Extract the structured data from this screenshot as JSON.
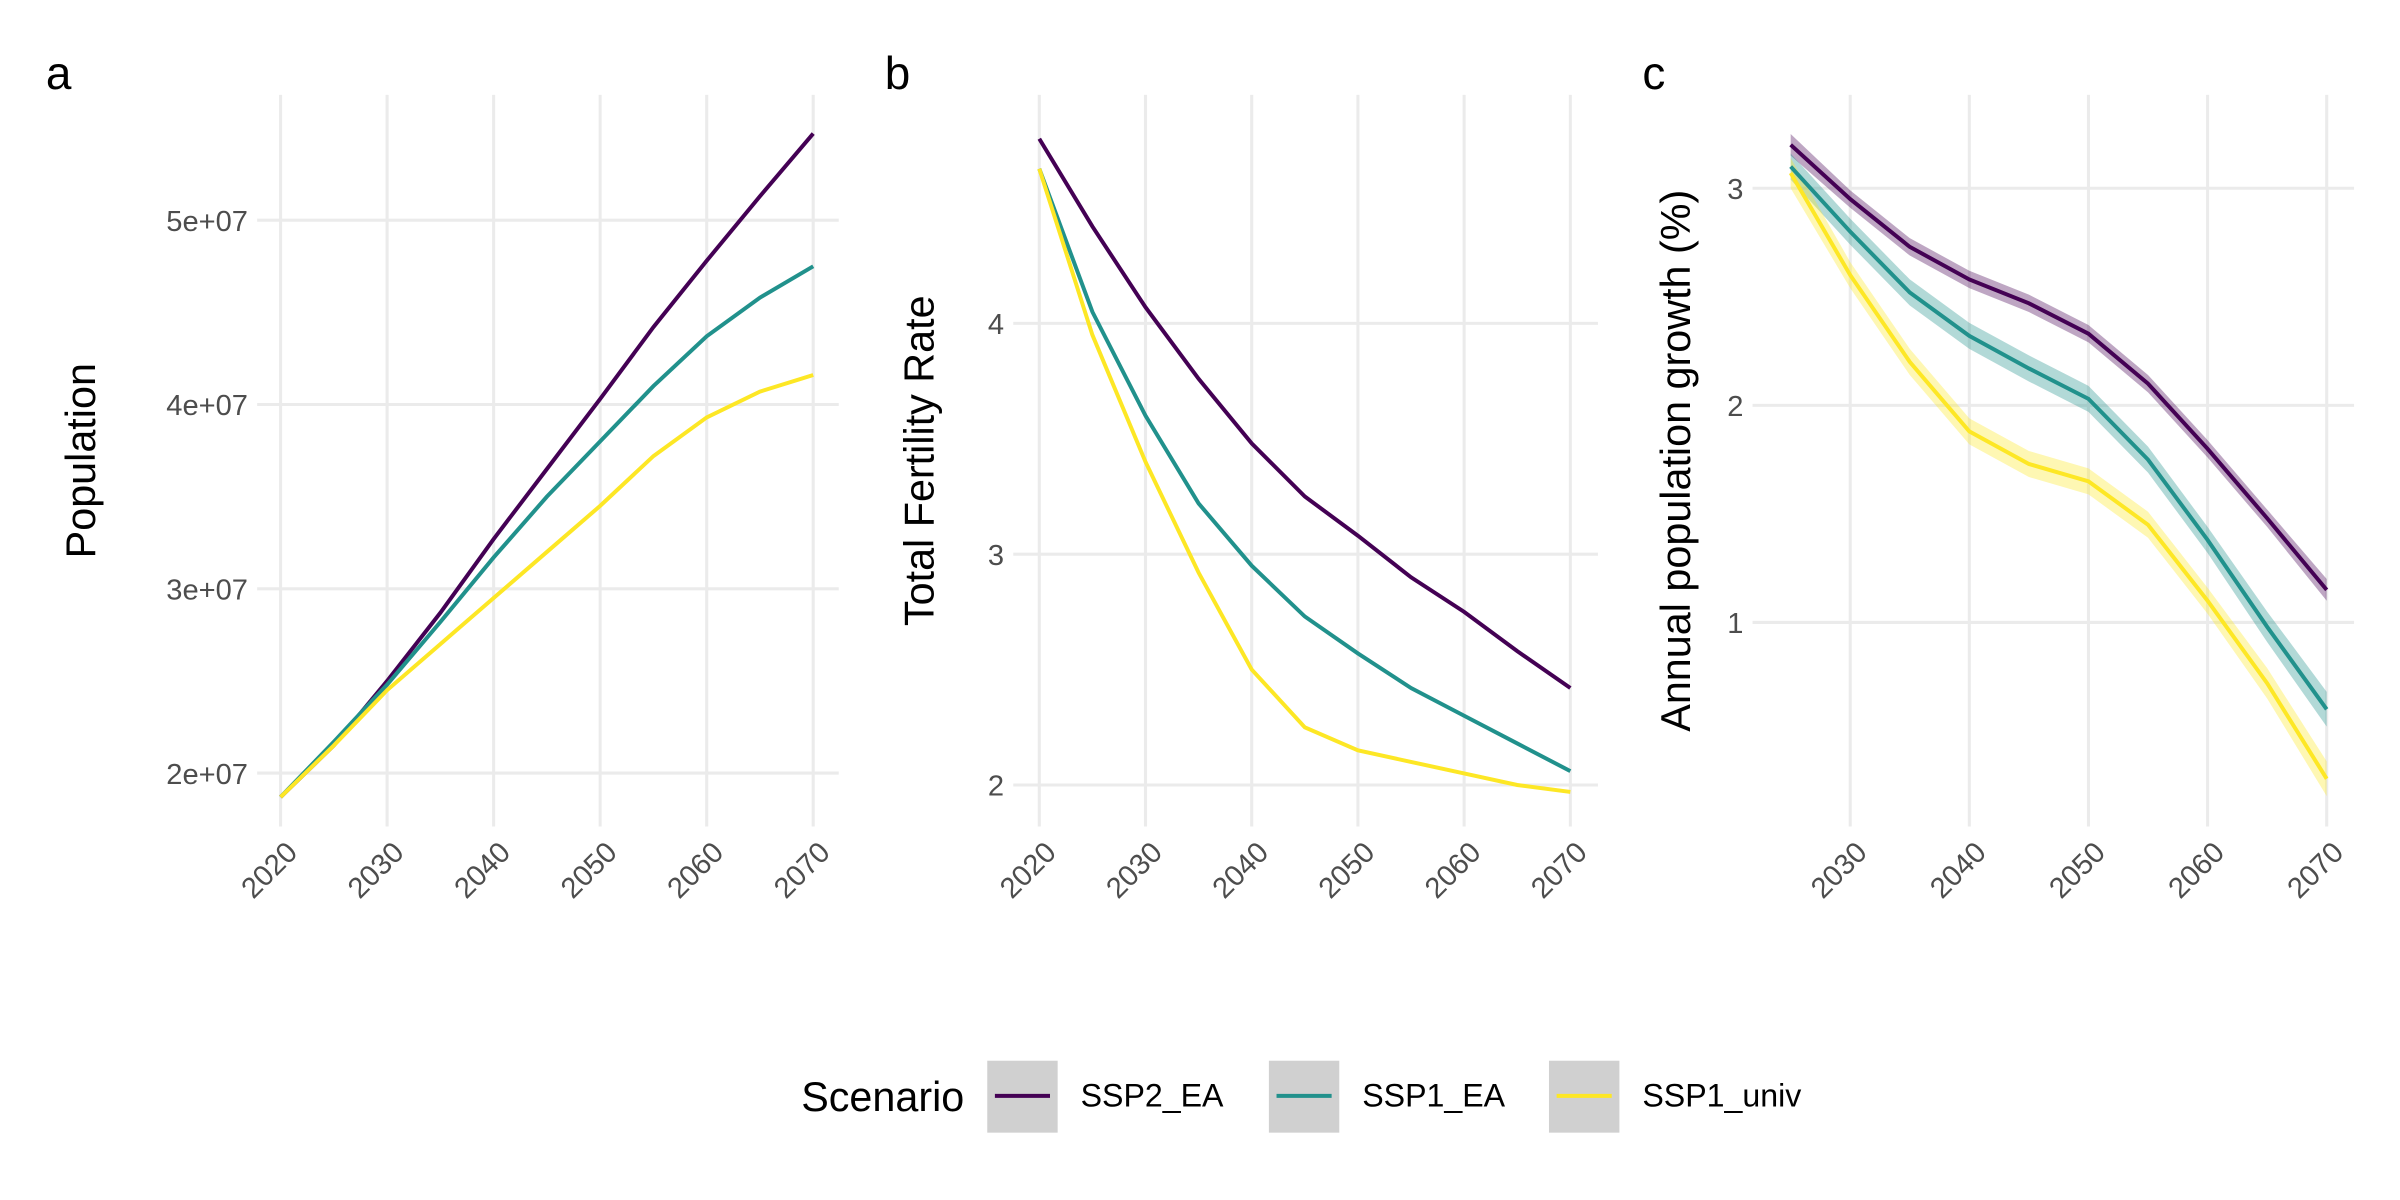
{
  "legend": {
    "title": "Scenario",
    "position": "bottom"
  },
  "chart_data": [
    {
      "type": "line",
      "panel_label": "a",
      "ylabel": "Population",
      "x": [
        2020,
        2025,
        2030,
        2035,
        2040,
        2045,
        2050,
        2055,
        2060,
        2065,
        2070
      ],
      "xlim": [
        2017.8,
        2072.4
      ],
      "xticks": [
        2020,
        2030,
        2040,
        2050,
        2060,
        2070
      ],
      "ylim": [
        17100000,
        56800000
      ],
      "yticks": [
        {
          "value": 20000000,
          "label": "2e+07"
        },
        {
          "value": 30000000,
          "label": "3e+07"
        },
        {
          "value": 40000000,
          "label": "4e+07"
        },
        {
          "value": 50000000,
          "label": "5e+07"
        }
      ],
      "grid": true,
      "series": [
        {
          "name": "SSP2_EA",
          "color": "#440154",
          "values": [
            18700000,
            21500000,
            25000000,
            28700000,
            32700000,
            36500000,
            40300000,
            44200000,
            47800000,
            51300000,
            54700000
          ]
        },
        {
          "name": "SSP1_EA",
          "color": "#21918c",
          "values": [
            18700000,
            21700000,
            24800000,
            28200000,
            31700000,
            35000000,
            38000000,
            41000000,
            43700000,
            45800000,
            47500000
          ]
        },
        {
          "name": "SSP1_univ",
          "color": "#fde725",
          "values": [
            18700000,
            21500000,
            24500000,
            27000000,
            29500000,
            32000000,
            34500000,
            37200000,
            39300000,
            40700000,
            41600000
          ]
        }
      ]
    },
    {
      "type": "line",
      "panel_label": "b",
      "ylabel": "Total Fertility Rate",
      "x": [
        2020,
        2025,
        2030,
        2035,
        2040,
        2045,
        2050,
        2055,
        2060,
        2065,
        2070
      ],
      "xlim": [
        2017.55,
        2072.6
      ],
      "xticks": [
        2020,
        2030,
        2040,
        2050,
        2060,
        2070
      ],
      "ylim": [
        1.82,
        4.99
      ],
      "yticks": [
        2,
        3,
        4
      ],
      "grid": true,
      "series": [
        {
          "name": "SSP2_EA",
          "color": "#440154",
          "values": [
            4.8,
            4.42,
            4.07,
            3.76,
            3.48,
            3.25,
            3.08,
            2.9,
            2.75,
            2.58,
            2.42
          ]
        },
        {
          "name": "SSP1_EA",
          "color": "#21918c",
          "values": [
            4.67,
            4.05,
            3.6,
            3.22,
            2.95,
            2.73,
            2.57,
            2.42,
            2.3,
            2.18,
            2.06
          ]
        },
        {
          "name": "SSP1_univ",
          "color": "#fde725",
          "values": [
            4.67,
            3.95,
            3.4,
            2.92,
            2.5,
            2.25,
            2.15,
            2.1,
            2.05,
            2.0,
            1.97
          ]
        }
      ]
    },
    {
      "type": "line",
      "panel_label": "c",
      "ylabel": "Annual population growth (%)",
      "x": [
        2025,
        2030,
        2035,
        2040,
        2045,
        2050,
        2055,
        2060,
        2065,
        2070
      ],
      "xlim": [
        2021.8,
        2072.3
      ],
      "xticks": [
        2030,
        2040,
        2050,
        2060,
        2070
      ],
      "ylim": [
        0.06,
        3.43
      ],
      "yticks": [
        1,
        2,
        3
      ],
      "grid": true,
      "series": [
        {
          "name": "SSP2_EA",
          "color": "#440154",
          "values": [
            3.2,
            2.95,
            2.73,
            2.58,
            2.47,
            2.33,
            2.1,
            1.8,
            1.48,
            1.15
          ],
          "lower": [
            3.15,
            2.91,
            2.69,
            2.54,
            2.43,
            2.29,
            2.06,
            1.76,
            1.44,
            1.1
          ],
          "upper": [
            3.25,
            2.99,
            2.77,
            2.62,
            2.51,
            2.37,
            2.14,
            1.84,
            1.52,
            1.2
          ]
        },
        {
          "name": "SSP1_EA",
          "color": "#21918c",
          "values": [
            3.1,
            2.8,
            2.52,
            2.32,
            2.17,
            2.03,
            1.75,
            1.38,
            0.98,
            0.6
          ],
          "lower": [
            3.04,
            2.74,
            2.46,
            2.26,
            2.11,
            1.97,
            1.69,
            1.32,
            0.91,
            0.52
          ],
          "upper": [
            3.16,
            2.86,
            2.58,
            2.38,
            2.23,
            2.09,
            1.81,
            1.44,
            1.05,
            0.68
          ]
        },
        {
          "name": "SSP1_univ",
          "color": "#fde725",
          "values": [
            3.07,
            2.6,
            2.2,
            1.88,
            1.73,
            1.65,
            1.45,
            1.1,
            0.72,
            0.28
          ],
          "lower": [
            3.0,
            2.54,
            2.14,
            1.82,
            1.67,
            1.59,
            1.39,
            1.04,
            0.65,
            0.2
          ],
          "upper": [
            3.14,
            2.66,
            2.26,
            1.94,
            1.79,
            1.71,
            1.51,
            1.16,
            0.79,
            0.36
          ]
        }
      ]
    }
  ]
}
